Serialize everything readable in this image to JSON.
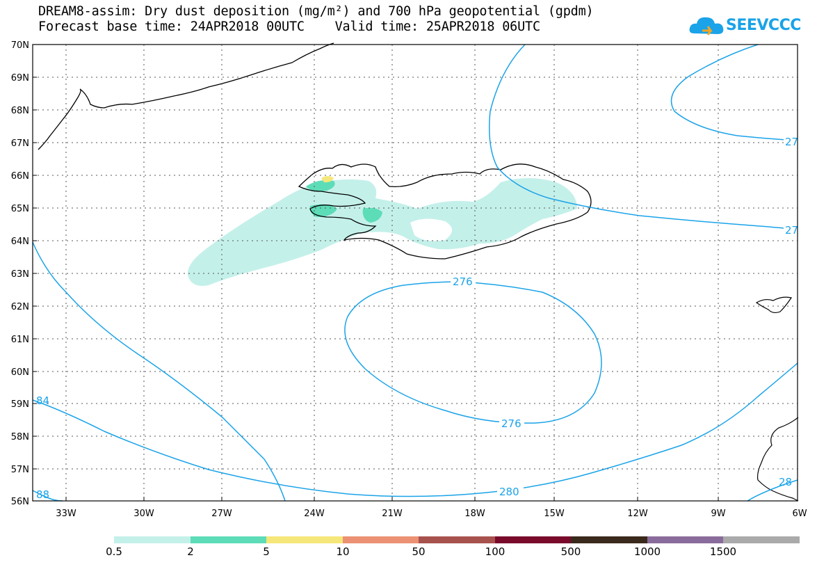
{
  "title": {
    "line1": "DREAM8-assim: Dry dust deposition (mg/m²) and 700 hPa geopotential (gpdm)",
    "line2": "Forecast base time: 24APR2018 00UTC    Valid time: 25APR2018 06UTC"
  },
  "logo": {
    "text": "SEEVCCC",
    "icon": "cloud-logo-icon"
  },
  "axes": {
    "lat_labels": [
      "70N",
      "69N",
      "68N",
      "67N",
      "66N",
      "65N",
      "64N",
      "63N",
      "62N",
      "61N",
      "60N",
      "59N",
      "58N",
      "57N",
      "56N"
    ],
    "lon_labels": [
      "33W",
      "30W",
      "27W",
      "24W",
      "21W",
      "18W",
      "15W",
      "12W",
      "9W",
      "6W"
    ]
  },
  "contours": {
    "label_276_upper": "276",
    "label_276_lower": "276",
    "label_280": "280",
    "label_284": "84",
    "label_288": "88",
    "label_right_top": "27",
    "label_right_mid": "27",
    "label_right_bottom": "28",
    "color": "#1aa3e8"
  },
  "legend": {
    "labels": [
      "0.5",
      "2",
      "5",
      "10",
      "50",
      "100",
      "500",
      "1000",
      "1500"
    ],
    "colors": [
      "#c4f0ea",
      "#5ddcb8",
      "#f5e77a",
      "#ec9173",
      "#a8524e",
      "#7a0a2c",
      "#3a2a1c",
      "#8a6c9c",
      "#aaaaaa"
    ]
  }
}
